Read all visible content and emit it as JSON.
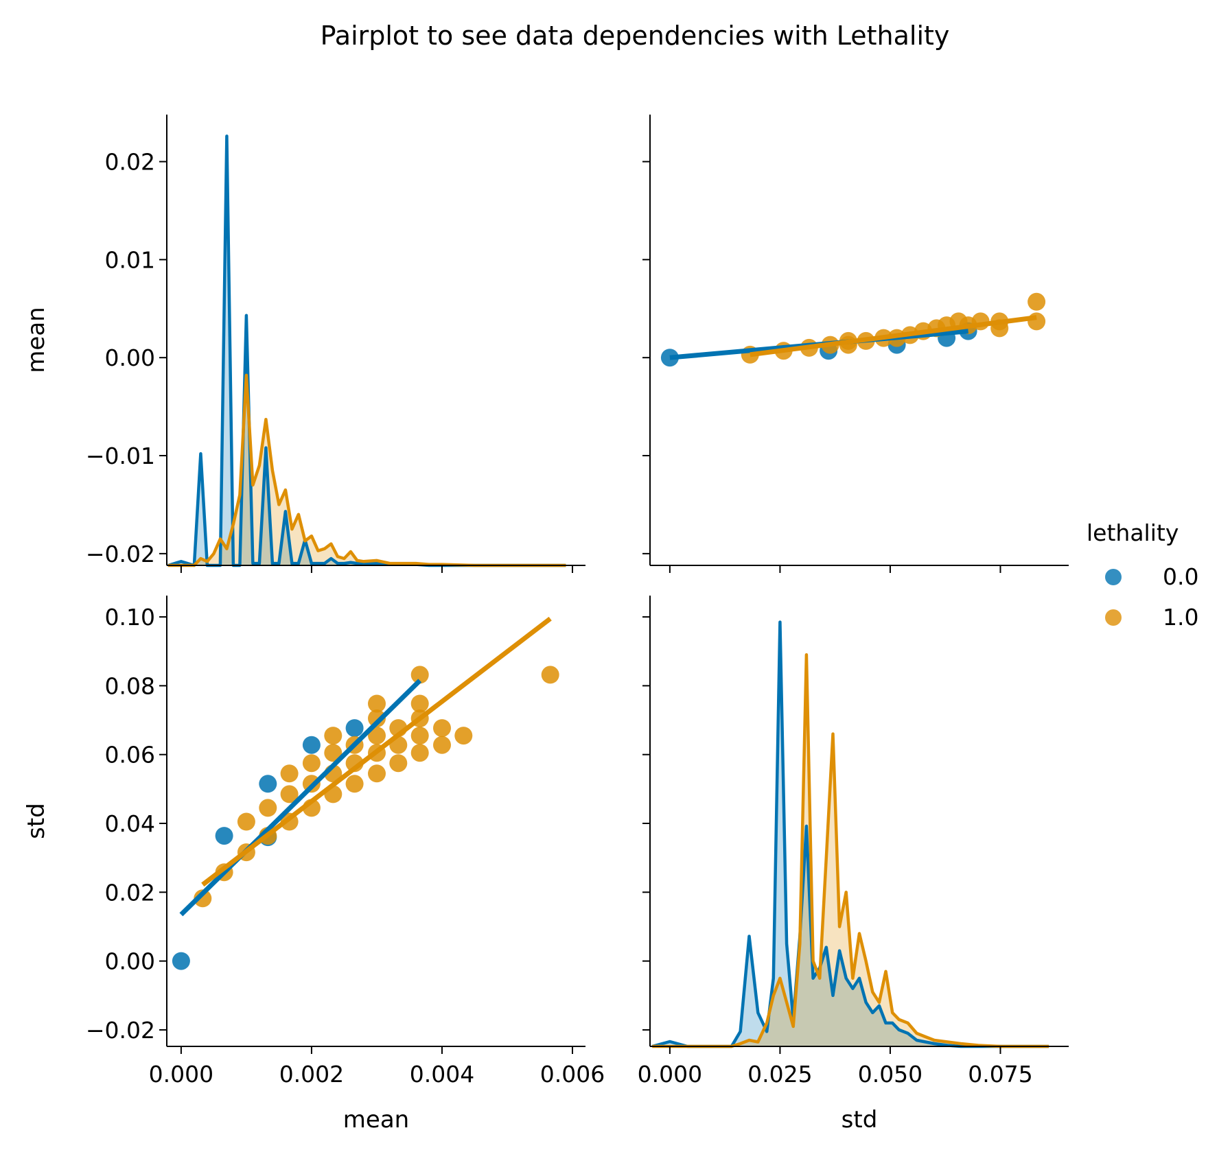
{
  "chart_data": {
    "type": "pairplot",
    "title": "Pairplot to see data dependencies with Lethality",
    "variables": [
      "mean",
      "std"
    ],
    "legend": {
      "title": "lethality",
      "placement": "right",
      "entries": [
        {
          "label": "0.0",
          "color": "#0173b2"
        },
        {
          "label": "1.0",
          "color": "#de8f05"
        }
      ]
    },
    "axes": {
      "mean": {
        "xlim": [
          -0.00022,
          0.0062
        ],
        "ylim": [
          -0.0212,
          0.0248
        ],
        "xticks": [
          {
            "v": 0,
            "label": "0.000"
          },
          {
            "v": 0.002,
            "label": "0.002"
          },
          {
            "v": 0.004,
            "label": "0.004"
          },
          {
            "v": 0.006,
            "label": "0.006"
          }
        ],
        "yticks": [
          {
            "v": -0.02,
            "label": "−0.02"
          },
          {
            "v": -0.01,
            "label": "−0.01"
          },
          {
            "v": 0,
            "label": "0.00"
          },
          {
            "v": 0.01,
            "label": "0.01"
          },
          {
            "v": 0.02,
            "label": "0.02"
          }
        ]
      },
      "std": {
        "xlim": [
          -0.0045,
          0.0905
        ],
        "ylim": [
          -0.0248,
          0.1062
        ],
        "xticks": [
          {
            "v": 0,
            "label": "0.000"
          },
          {
            "v": 0.025,
            "label": "0.025"
          },
          {
            "v": 0.05,
            "label": "0.050"
          },
          {
            "v": 0.075,
            "label": "0.075"
          }
        ],
        "yticks": [
          {
            "v": -0.02,
            "label": "−0.02"
          },
          {
            "v": 0,
            "label": "0.00"
          },
          {
            "v": 0.02,
            "label": "0.02"
          },
          {
            "v": 0.04,
            "label": "0.04"
          },
          {
            "v": 0.06,
            "label": "0.06"
          },
          {
            "v": 0.08,
            "label": "0.08"
          },
          {
            "v": 0.1,
            "label": "0.10"
          }
        ]
      }
    },
    "panels": {
      "mean_kde": {
        "type": "kde",
        "x": [
          -0.0002,
          0.0,
          0.0002,
          0.0003,
          0.0004,
          0.0005,
          0.0006,
          0.0007,
          0.0008,
          0.0009,
          0.001,
          0.0011,
          0.0012,
          0.0013,
          0.0014,
          0.0015,
          0.0016,
          0.0017,
          0.0018,
          0.0019,
          0.002,
          0.0021,
          0.0022,
          0.0023,
          0.0024,
          0.0025,
          0.0026,
          0.0027,
          0.0028,
          0.003,
          0.0032,
          0.0034,
          0.0036,
          0.0038,
          0.004,
          0.0045,
          0.005,
          0.0055,
          0.0059
        ],
        "series": [
          {
            "name": "0.0",
            "density": [
              -0.0212,
              -0.0208,
              -0.0212,
              -0.0098,
              -0.0212,
              -0.0212,
              -0.0212,
              0.0226,
              -0.0212,
              -0.0212,
              0.0043,
              -0.021,
              -0.021,
              -0.0092,
              -0.021,
              -0.021,
              -0.0157,
              -0.021,
              -0.021,
              -0.0186,
              -0.021,
              -0.021,
              -0.021,
              -0.0205,
              -0.021,
              -0.021,
              -0.0209,
              -0.021,
              -0.021,
              -0.021,
              -0.0211,
              -0.0211,
              -0.0211,
              -0.0212,
              -0.0212,
              -0.0212,
              -0.0212,
              -0.0212,
              -0.0212
            ]
          },
          {
            "name": "1.0",
            "density": [
              -0.0212,
              -0.0212,
              -0.0212,
              -0.0205,
              -0.0208,
              -0.02,
              -0.0185,
              -0.0195,
              -0.017,
              -0.014,
              -0.0018,
              -0.013,
              -0.011,
              -0.0063,
              -0.0115,
              -0.015,
              -0.0135,
              -0.0175,
              -0.016,
              -0.0187,
              -0.0182,
              -0.0197,
              -0.0195,
              -0.019,
              -0.0203,
              -0.0205,
              -0.0198,
              -0.0207,
              -0.0208,
              -0.0207,
              -0.021,
              -0.021,
              -0.021,
              -0.0211,
              -0.0211,
              -0.0212,
              -0.0212,
              -0.0212,
              -0.0212
            ]
          }
        ]
      },
      "std_vs_mean": {
        "type": "scatter+regression",
        "series": [
          {
            "name": "0.0",
            "points": [
              [
                0,
                0
              ],
              [
                0.00066,
                0.0364
              ],
              [
                0.00133,
                0.0515
              ],
              [
                0.002,
                0.0628
              ],
              [
                0.00266,
                0.0677
              ],
              [
                0.00133,
                0.036
              ]
            ],
            "fit": [
              [
                0,
                0.0135
              ],
              [
                0.00366,
                0.0815
              ]
            ]
          },
          {
            "name": "1.0",
            "points": [
              [
                0.00033,
                0.0182
              ],
              [
                0.00066,
                0.0258
              ],
              [
                0.001,
                0.0316
              ],
              [
                0.001,
                0.0405
              ],
              [
                0.00133,
                0.0364
              ],
              [
                0.00133,
                0.0445
              ],
              [
                0.00166,
                0.0405
              ],
              [
                0.00166,
                0.0485
              ],
              [
                0.00166,
                0.0545
              ],
              [
                0.002,
                0.0445
              ],
              [
                0.002,
                0.0515
              ],
              [
                0.002,
                0.0575
              ],
              [
                0.00233,
                0.0485
              ],
              [
                0.00233,
                0.0545
              ],
              [
                0.00233,
                0.0605
              ],
              [
                0.00233,
                0.0655
              ],
              [
                0.00266,
                0.0515
              ],
              [
                0.00266,
                0.0575
              ],
              [
                0.00266,
                0.0628
              ],
              [
                0.003,
                0.0545
              ],
              [
                0.003,
                0.0605
              ],
              [
                0.003,
                0.0655
              ],
              [
                0.003,
                0.0705
              ],
              [
                0.003,
                0.0748
              ],
              [
                0.00333,
                0.0575
              ],
              [
                0.00333,
                0.0628
              ],
              [
                0.00333,
                0.0677
              ],
              [
                0.00366,
                0.0605
              ],
              [
                0.00366,
                0.0655
              ],
              [
                0.00366,
                0.0705
              ],
              [
                0.00366,
                0.0748
              ],
              [
                0.00366,
                0.0832
              ],
              [
                0.004,
                0.0628
              ],
              [
                0.004,
                0.0677
              ],
              [
                0.00433,
                0.0655
              ],
              [
                0.00566,
                0.0832
              ]
            ],
            "fit": [
              [
                0.00033,
                0.0222
              ],
              [
                0.00566,
                0.0995
              ]
            ]
          }
        ]
      },
      "mean_vs_std": {
        "type": "scatter+regression",
        "series": [
          {
            "name": "0.0",
            "points": [
              [
                0,
                0
              ],
              [
                0.036,
                0.0007
              ],
              [
                0.0515,
                0.0013
              ],
              [
                0.0628,
                0.002
              ],
              [
                0.0677,
                0.0027
              ]
            ],
            "fit": [
              [
                0,
                0
              ],
              [
                0.0677,
                0.0027
              ]
            ]
          },
          {
            "name": "1.0",
            "points": [
              [
                0.0182,
                0.0003
              ],
              [
                0.0258,
                0.0007
              ],
              [
                0.0316,
                0.001
              ],
              [
                0.0364,
                0.0013
              ],
              [
                0.0405,
                0.0013
              ],
              [
                0.0405,
                0.0017
              ],
              [
                0.0445,
                0.0017
              ],
              [
                0.0485,
                0.002
              ],
              [
                0.0515,
                0.002
              ],
              [
                0.0545,
                0.0023
              ],
              [
                0.0575,
                0.0027
              ],
              [
                0.0605,
                0.003
              ],
              [
                0.0628,
                0.0033
              ],
              [
                0.0655,
                0.0037
              ],
              [
                0.0677,
                0.0033
              ],
              [
                0.0705,
                0.0037
              ],
              [
                0.0748,
                0.003
              ],
              [
                0.0748,
                0.0037
              ],
              [
                0.0832,
                0.0037
              ],
              [
                0.0832,
                0.0057
              ]
            ],
            "fit": [
              [
                0.0182,
                0.0003
              ],
              [
                0.0832,
                0.0041
              ]
            ]
          }
        ]
      },
      "std_kde": {
        "type": "kde",
        "x": [
          -0.004,
          0.0,
          0.004,
          0.01,
          0.014,
          0.016,
          0.018,
          0.02,
          0.022,
          0.0235,
          0.025,
          0.0265,
          0.028,
          0.0295,
          0.031,
          0.0325,
          0.034,
          0.0355,
          0.037,
          0.0385,
          0.04,
          0.0415,
          0.043,
          0.0445,
          0.046,
          0.0475,
          0.049,
          0.0505,
          0.052,
          0.054,
          0.056,
          0.058,
          0.06,
          0.063,
          0.066,
          0.07,
          0.075,
          0.08,
          0.086
        ],
        "series": [
          {
            "name": "0.0",
            "density": [
              -0.0248,
              -0.0234,
              -0.0248,
              -0.0248,
              -0.0248,
              -0.0205,
              0.0072,
              -0.015,
              -0.0205,
              -0.005,
              0.0985,
              0.005,
              -0.017,
              0.007,
              0.0392,
              -0.005,
              -0.002,
              0.004,
              -0.01,
              0.003,
              -0.005,
              -0.008,
              -0.005,
              -0.012,
              -0.015,
              -0.013,
              -0.018,
              -0.018,
              -0.02,
              -0.021,
              -0.023,
              -0.0235,
              -0.024,
              -0.0245,
              -0.0248,
              -0.0248,
              -0.0248,
              -0.0248,
              -0.0248
            ]
          },
          {
            "name": "1.0",
            "density": [
              -0.0248,
              -0.0248,
              -0.0248,
              -0.0248,
              -0.0248,
              -0.024,
              -0.023,
              -0.0235,
              -0.018,
              -0.01,
              -0.005,
              -0.012,
              -0.019,
              0.005,
              0.089,
              0.0,
              -0.005,
              0.03,
              0.066,
              0.01,
              0.02,
              -0.005,
              0.008,
              0.0,
              -0.009,
              -0.012,
              -0.003,
              -0.015,
              -0.017,
              -0.018,
              -0.021,
              -0.022,
              -0.023,
              -0.0235,
              -0.024,
              -0.0245,
              -0.0248,
              -0.0248,
              -0.0248
            ]
          }
        ]
      }
    }
  }
}
